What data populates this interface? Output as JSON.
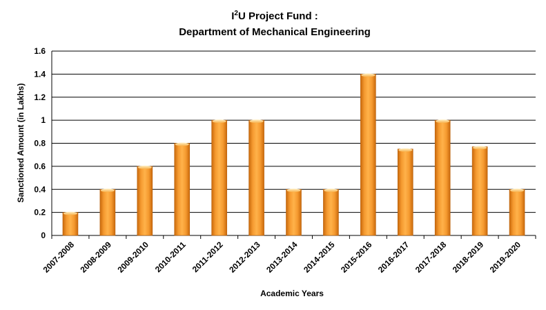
{
  "chart_data": {
    "type": "bar",
    "title_line1_prefix": "I",
    "title_line1_sup": "2",
    "title_line1_suffix": "U Project Fund :",
    "title_line2": "Department of Mechanical Engineering",
    "xlabel": "Academic Years",
    "ylabel": "Sanctioned Amount (in Lakhs)",
    "categories": [
      "2007-2008",
      "2008-2009",
      "2009-2010",
      "2010-2011",
      "2011-2012",
      "2012-2013",
      "2013-2014",
      "2014-2015",
      "2015-2016",
      "2016-2017",
      "2017-2018",
      "2018-2019",
      "2019-2020"
    ],
    "values": [
      0.2,
      0.4,
      0.6,
      0.8,
      1.0,
      1.0,
      0.4,
      0.4,
      1.4,
      0.75,
      1.0,
      0.77,
      0.4
    ],
    "ylim": [
      0,
      1.6
    ],
    "yticks": [
      "0",
      "0.2",
      "0.4",
      "0.6",
      "0.8",
      "1",
      "1.2",
      "1.4",
      "1.6"
    ],
    "grid": true,
    "legend": "none",
    "bar_color": "#f39a2e",
    "bar_highlight": "#ffc877",
    "bar_shadow": "#c56a10"
  }
}
